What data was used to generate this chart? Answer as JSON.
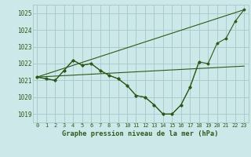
{
  "title": "Graphe pression niveau de la mer (hPa)",
  "bg_color": "#cce8e8",
  "grid_color": "#aacccc",
  "line_color": "#2d5a1b",
  "marker_color": "#2d5a1b",
  "xlim": [
    -0.5,
    23.5
  ],
  "ylim": [
    1018.5,
    1025.5
  ],
  "yticks": [
    1019,
    1020,
    1021,
    1022,
    1023,
    1024,
    1025
  ],
  "xticks": [
    0,
    1,
    2,
    3,
    4,
    5,
    6,
    7,
    8,
    9,
    10,
    11,
    12,
    13,
    14,
    15,
    16,
    17,
    18,
    19,
    20,
    21,
    22,
    23
  ],
  "series_main": {
    "x": [
      0,
      1,
      2,
      3,
      4,
      5,
      6,
      7,
      8,
      9,
      10,
      11,
      12,
      13,
      14,
      15,
      16,
      17,
      18,
      19,
      20,
      21,
      22,
      23
    ],
    "y": [
      1021.2,
      1021.1,
      1021.0,
      1021.6,
      1022.2,
      1021.9,
      1022.0,
      1021.6,
      1021.3,
      1021.1,
      1020.7,
      1020.1,
      1020.0,
      1019.55,
      1019.0,
      1019.0,
      1019.55,
      1020.6,
      1022.1,
      1022.0,
      1023.2,
      1023.5,
      1024.5,
      1025.2
    ]
  },
  "series_short": {
    "x": [
      0,
      1,
      2,
      3,
      4,
      5,
      6,
      7,
      8,
      9,
      10,
      11,
      12,
      13,
      14,
      15,
      16,
      17,
      18
    ],
    "y": [
      1021.2,
      1021.1,
      1021.0,
      1021.6,
      1022.2,
      1021.9,
      1022.0,
      1021.6,
      1021.3,
      1021.1,
      1020.7,
      1020.1,
      1020.0,
      1019.55,
      1019.0,
      1019.0,
      1019.55,
      1020.6,
      1022.1
    ]
  },
  "line_upper": {
    "x": [
      0,
      23
    ],
    "y": [
      1021.2,
      1025.2
    ]
  },
  "line_lower": {
    "x": [
      0,
      23
    ],
    "y": [
      1021.2,
      1021.85
    ]
  }
}
